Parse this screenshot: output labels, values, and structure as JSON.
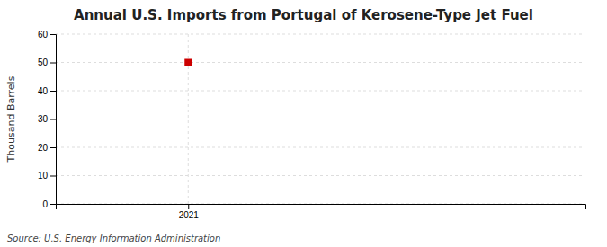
{
  "chart_data": {
    "type": "line",
    "title": "Annual U.S. Imports from Portugal of Kerosene-Type Jet Fuel",
    "ylabel": "Thousand Barrels",
    "source": "Source: U.S. Energy Information Administration",
    "x": [
      2021
    ],
    "values": [
      50
    ],
    "color": "#cc0000",
    "marker": "square",
    "line_style": "solid",
    "xlim": [
      2020.5,
      2022.5
    ],
    "xticks": [
      2021
    ],
    "ylim": [
      0,
      60
    ],
    "yticks": [
      0,
      10,
      20,
      30,
      40,
      50,
      60
    ],
    "grid": true
  }
}
